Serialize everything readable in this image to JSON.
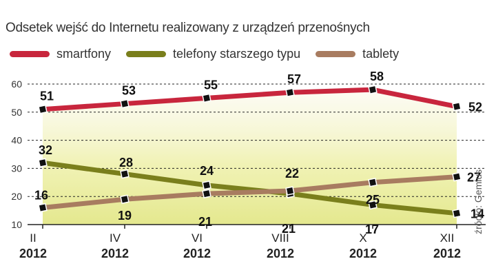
{
  "chart_data": {
    "type": "line",
    "title": "Odsetek wejść do Internetu realizowany z urządzeń przenośnych",
    "source": "źródło: Gemius",
    "x": [
      "II 2012",
      "IV 2012",
      "VI 2012",
      "VIII 2012",
      "X 2012",
      "XII 2012"
    ],
    "x_month_labels": [
      "II",
      "IV",
      "VI",
      "VIII",
      "X",
      "XII"
    ],
    "x_year_labels": [
      "2012",
      "2012",
      "2012",
      "2012",
      "2012",
      "2012"
    ],
    "ylim": [
      10,
      60
    ],
    "yticks": [
      "10",
      "20",
      "30",
      "40",
      "50",
      "60"
    ],
    "ytick_values": [
      10,
      20,
      30,
      40,
      50,
      60
    ],
    "series": [
      {
        "name": "smartfony",
        "color": "#c8263d",
        "values": [
          51,
          53,
          55,
          57,
          58,
          52
        ]
      },
      {
        "name": "telefony starszego typu",
        "color": "#7a7f1c",
        "values": [
          32,
          28,
          24,
          21,
          17,
          14
        ]
      },
      {
        "name": "tablety",
        "color": "#a87c60",
        "values": [
          16,
          19,
          21,
          22,
          25,
          27
        ]
      }
    ],
    "data_labels": {
      "smartfony": [
        "51",
        "53",
        "55",
        "57",
        "58",
        "52"
      ],
      "telefony starszego typu": [
        "32",
        "28",
        "24",
        "21",
        "17",
        "14"
      ],
      "tablety": [
        "16",
        "19",
        "21",
        "22",
        "25",
        "27"
      ]
    }
  }
}
